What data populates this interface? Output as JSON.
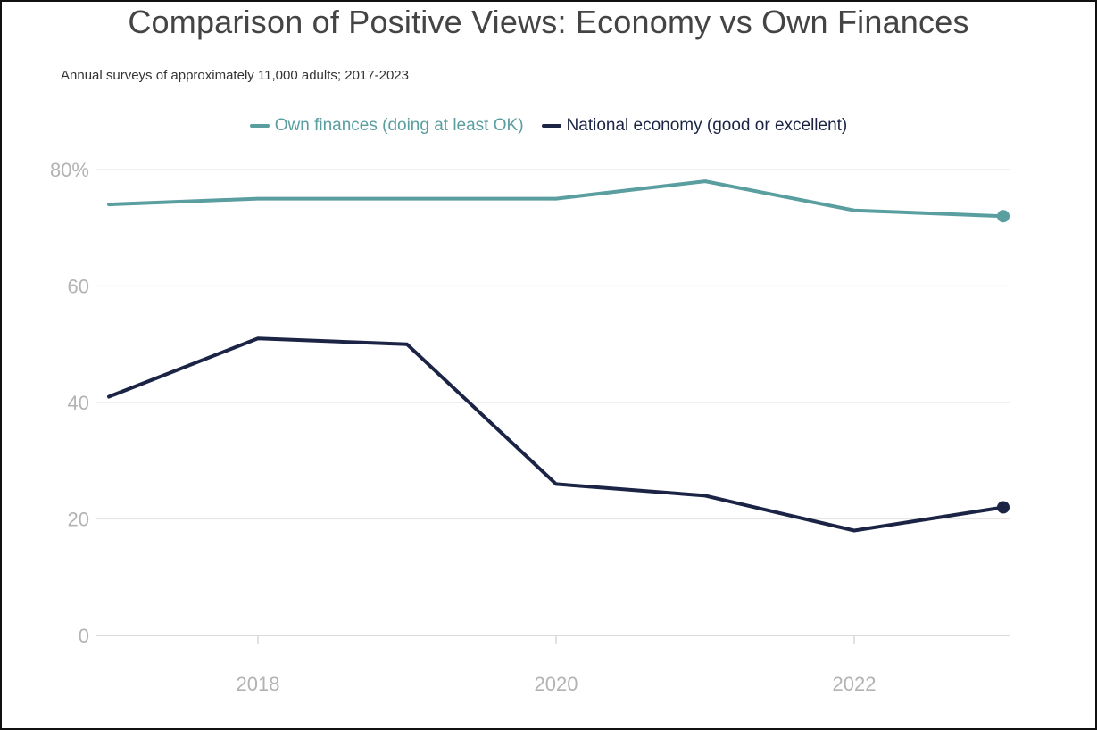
{
  "chart_data": {
    "type": "line",
    "title": "Comparison of Positive Views: Economy vs Own Finances",
    "subtitle": "Annual surveys of approximately 11,000 adults; 2017-2023",
    "xlabel": "",
    "ylabel": "",
    "x": [
      2017,
      2018,
      2019,
      2020,
      2021,
      2022,
      2023
    ],
    "x_ticks": [
      "2018",
      "2020",
      "2022"
    ],
    "y_ticks": [
      "0",
      "20",
      "40",
      "60",
      "80%"
    ],
    "ylim": [
      0,
      80
    ],
    "grid": true,
    "legend_position": "top-center",
    "series": [
      {
        "name": "Own finances (doing at least OK)",
        "color": "#5a9ea0",
        "values": [
          74,
          75,
          75,
          75,
          78,
          73,
          72
        ]
      },
      {
        "name": "National economy (good or excellent)",
        "color": "#1b2444",
        "values": [
          41,
          51,
          50,
          26,
          24,
          18,
          22
        ]
      }
    ]
  }
}
